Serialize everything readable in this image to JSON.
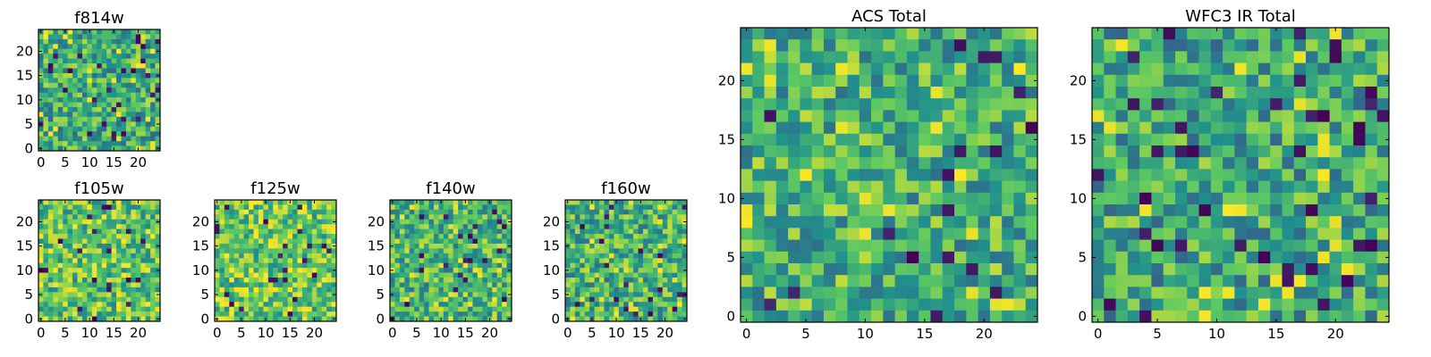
{
  "chart_data": [
    {
      "id": "f814w",
      "type": "heatmap",
      "title": "f814w",
      "grid_size": 25,
      "xlim": [
        0,
        24
      ],
      "ylim": [
        0,
        24
      ],
      "xticks": [
        "0",
        "5",
        "10",
        "15",
        "20"
      ],
      "yticks": [
        "0",
        "5",
        "10",
        "15",
        "20"
      ],
      "colormap": "viridis",
      "pattern_seed": 814,
      "pattern_bias": 0.62
    },
    {
      "id": "f105w",
      "type": "heatmap",
      "title": "f105w",
      "grid_size": 25,
      "xlim": [
        0,
        24
      ],
      "ylim": [
        0,
        24
      ],
      "xticks": [
        "0",
        "5",
        "10",
        "15",
        "20"
      ],
      "yticks": [
        "0",
        "5",
        "10",
        "15",
        "20"
      ],
      "colormap": "viridis",
      "pattern_seed": 105,
      "pattern_bias": 0.72
    },
    {
      "id": "f125w",
      "type": "heatmap",
      "title": "f125w",
      "grid_size": 25,
      "xlim": [
        0,
        24
      ],
      "ylim": [
        0,
        24
      ],
      "xticks": [
        "0",
        "5",
        "10",
        "15",
        "20"
      ],
      "yticks": [
        "0",
        "5",
        "10",
        "15",
        "20"
      ],
      "colormap": "viridis",
      "pattern_seed": 125,
      "pattern_bias": 0.75
    },
    {
      "id": "f140w",
      "type": "heatmap",
      "title": "f140w",
      "grid_size": 25,
      "xlim": [
        0,
        24
      ],
      "ylim": [
        0,
        24
      ],
      "xticks": [
        "0",
        "5",
        "10",
        "15",
        "20"
      ],
      "yticks": [
        "0",
        "5",
        "10",
        "15",
        "20"
      ],
      "colormap": "viridis",
      "pattern_seed": 140,
      "pattern_bias": 0.66
    },
    {
      "id": "f160w",
      "type": "heatmap",
      "title": "f160w",
      "grid_size": 25,
      "xlim": [
        0,
        24
      ],
      "ylim": [
        0,
        24
      ],
      "xticks": [
        "0",
        "5",
        "10",
        "15",
        "20"
      ],
      "yticks": [
        "0",
        "5",
        "10",
        "15",
        "20"
      ],
      "colormap": "viridis",
      "pattern_seed": 160,
      "pattern_bias": 0.64
    },
    {
      "id": "acs-total",
      "type": "heatmap",
      "title": "ACS Total",
      "grid_size": 25,
      "xlim": [
        0,
        24
      ],
      "ylim": [
        0,
        24
      ],
      "xticks": [
        "0",
        "5",
        "10",
        "15",
        "20"
      ],
      "yticks": [
        "0",
        "5",
        "10",
        "15",
        "20"
      ],
      "colormap": "viridis",
      "pattern_seed": 2001,
      "pattern_bias": 0.64
    },
    {
      "id": "wfc3-ir-total",
      "type": "heatmap",
      "title": "WFC3 IR Total",
      "grid_size": 25,
      "xlim": [
        0,
        24
      ],
      "ylim": [
        0,
        24
      ],
      "xticks": [
        "0",
        "5",
        "10",
        "15",
        "20"
      ],
      "yticks": [
        "0",
        "5",
        "10",
        "15",
        "20"
      ],
      "colormap": "viridis",
      "pattern_seed": 3001,
      "pattern_bias": 0.6
    }
  ],
  "colors": {
    "viridis_stops": [
      "#440154",
      "#3b528b",
      "#21918c",
      "#5ec962",
      "#fde725"
    ],
    "axis_line": "#000000",
    "background": "#ffffff"
  }
}
